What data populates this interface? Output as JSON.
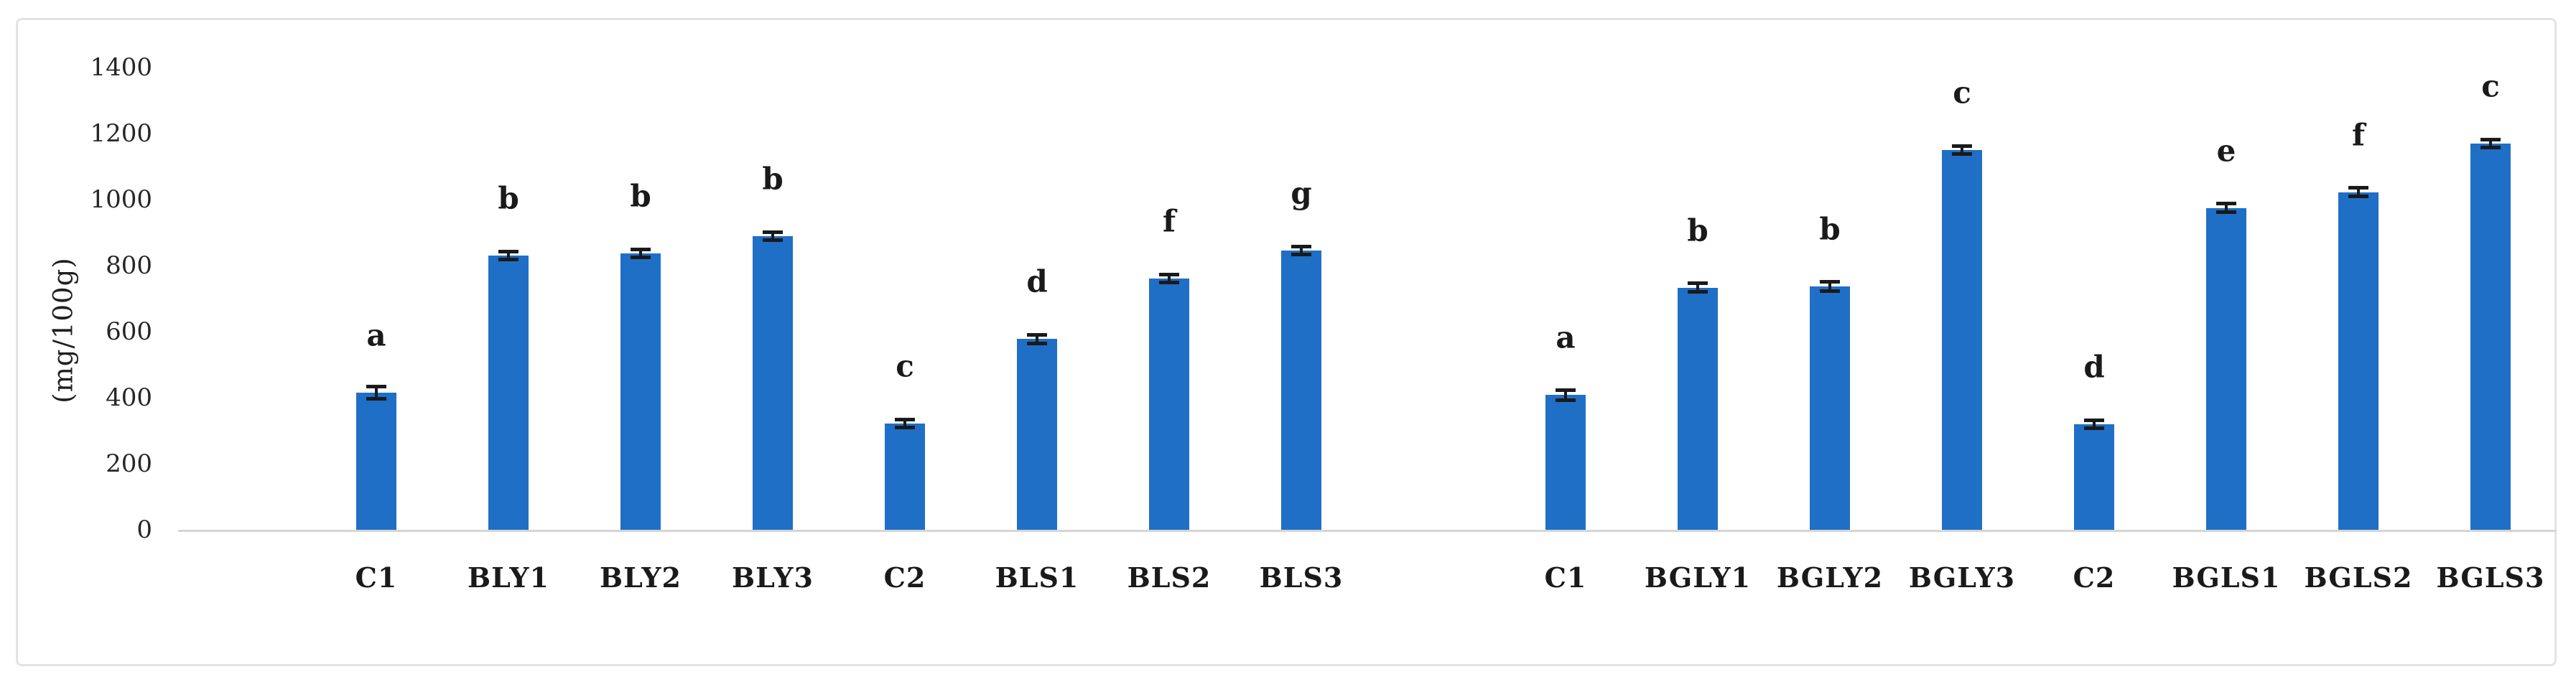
{
  "colors": {
    "bar_fill": "#1f6fc6",
    "error_bar": "#1a1a1a",
    "axis_line": "#d5d5d5",
    "frame_border": "#e3e3e3",
    "text": "#1a1a1a"
  },
  "chart_data": {
    "type": "bar",
    "title": "",
    "xlabel": "",
    "ylabel": "(mg/100g)",
    "ylim": [
      0,
      1400
    ],
    "yticks": [
      0,
      200,
      400,
      600,
      800,
      1000,
      1200,
      1400
    ],
    "grid": false,
    "legend": "none",
    "bar_color": "#1f6fc6",
    "groups": [
      {
        "categories": [
          "C1",
          "BLY1",
          "BLY2",
          "BLY3",
          "C2",
          "BLS1",
          "BLS2",
          "BLS3"
        ],
        "values": [
          415,
          830,
          838,
          890,
          322,
          578,
          760,
          845
        ],
        "errors": [
          15,
          8,
          8,
          8,
          8,
          10,
          8,
          8
        ],
        "sig_letters": [
          "a",
          "b",
          "b",
          "b",
          "c",
          "d",
          "f",
          "g"
        ]
      },
      {
        "categories": [
          "C1",
          "BGLY1",
          "BGLY2",
          "BGLY3",
          "C2",
          "BGLS1",
          "BGLS2",
          "BGLS3"
        ],
        "values": [
          408,
          733,
          737,
          1150,
          320,
          975,
          1022,
          1170
        ],
        "errors": [
          12,
          10,
          10,
          8,
          8,
          10,
          10,
          8
        ],
        "sig_letters": [
          "a",
          "b",
          "b",
          "c",
          "d",
          "e",
          "f",
          "c"
        ]
      }
    ]
  }
}
